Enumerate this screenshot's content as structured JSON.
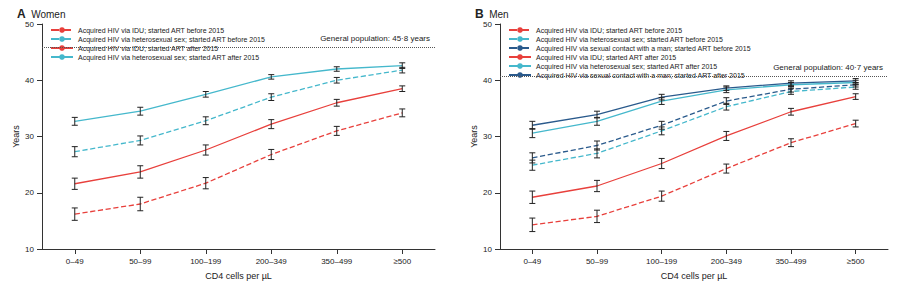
{
  "chart_data": [
    {
      "type": "line",
      "panel": "A",
      "title": "Women",
      "x_label": "CD4 cells per µL",
      "y_label": "Years",
      "categories": [
        "0–49",
        "50–99",
        "100–199",
        "200–349",
        "350–499",
        "≥500"
      ],
      "ylim": [
        10,
        50
      ],
      "yticks": [
        10,
        20,
        30,
        40,
        50
      ],
      "grid": false,
      "legend": "upper left",
      "reference_line": {
        "value": 45.8,
        "label": "General population: 45·8 years"
      },
      "series": [
        {
          "name": "Acquired HIV via IDU; started ART before 2015",
          "color": "#e8403c",
          "line_style": "dashed",
          "values": [
            16.2,
            18.0,
            21.7,
            26.8,
            31.0,
            34.2
          ],
          "errors": [
            1.1,
            1.2,
            1.0,
            0.9,
            0.8,
            0.7
          ]
        },
        {
          "name": "Acquired HIV via heterosexual sex; started ART before 2015",
          "color": "#45b8cc",
          "line_style": "dashed",
          "values": [
            27.3,
            29.3,
            32.8,
            37.0,
            40.0,
            41.8
          ],
          "errors": [
            0.9,
            0.8,
            0.7,
            0.6,
            0.5,
            0.5
          ]
        },
        {
          "name": "Acquired HIV via IDU; started ART after 2015",
          "color": "#e8403c",
          "line_style": "solid",
          "values": [
            21.6,
            23.7,
            27.6,
            32.2,
            36.0,
            38.5
          ],
          "errors": [
            1.0,
            1.1,
            0.9,
            0.8,
            0.6,
            0.5
          ]
        },
        {
          "name": "Acquired HIV via heterosexual sex; started ART after 2015",
          "color": "#45b8cc",
          "line_style": "solid",
          "values": [
            32.7,
            34.5,
            37.5,
            40.6,
            42.0,
            42.6
          ],
          "errors": [
            0.7,
            0.7,
            0.5,
            0.4,
            0.4,
            0.5
          ]
        }
      ]
    },
    {
      "type": "line",
      "panel": "B",
      "title": "Men",
      "x_label": "CD4 cells per µL",
      "y_label": "Years",
      "categories": [
        "0–49",
        "50–99",
        "100–199",
        "200–349",
        "350–499",
        "≥500"
      ],
      "ylim": [
        10,
        50
      ],
      "yticks": [
        10,
        20,
        30,
        40,
        50
      ],
      "grid": false,
      "legend": "upper left",
      "reference_line": {
        "value": 40.7,
        "label": "General population: 40·7 years"
      },
      "series": [
        {
          "name": "Acquired HIV via IDU; started ART before 2015",
          "color": "#e8403c",
          "line_style": "dashed",
          "values": [
            14.3,
            15.8,
            19.4,
            24.3,
            28.9,
            32.3
          ],
          "errors": [
            1.2,
            1.1,
            0.9,
            0.8,
            0.7,
            0.6
          ]
        },
        {
          "name": "Acquired HIV via heterosexual sex; started ART before 2015",
          "color": "#45b8cc",
          "line_style": "dashed",
          "values": [
            24.9,
            27.0,
            31.0,
            35.3,
            38.0,
            38.8
          ],
          "errors": [
            0.9,
            0.8,
            0.7,
            0.6,
            0.5,
            0.4
          ]
        },
        {
          "name": "Acquired HIV via sexual contact with a man; started ART before 2015",
          "color": "#2a5a8c",
          "line_style": "dashed",
          "values": [
            26.2,
            28.4,
            32.0,
            36.3,
            38.4,
            39.2
          ],
          "errors": [
            0.9,
            0.8,
            0.7,
            0.6,
            0.5,
            0.4
          ]
        },
        {
          "name": "Acquired HIV via IDU; started ART after 2015",
          "color": "#e8403c",
          "line_style": "solid",
          "values": [
            19.2,
            21.2,
            25.2,
            30.1,
            34.4,
            37.1
          ],
          "errors": [
            1.1,
            1.0,
            0.9,
            0.8,
            0.6,
            0.5
          ]
        },
        {
          "name": "Acquired HIV via heterosexual sex; started ART after 2015",
          "color": "#45b8cc",
          "line_style": "solid",
          "values": [
            30.6,
            32.7,
            36.3,
            38.3,
            39.2,
            39.6
          ],
          "errors": [
            0.8,
            0.7,
            0.6,
            0.5,
            0.4,
            0.4
          ]
        },
        {
          "name": "Acquired HIV via sexual contact with a man; started ART after 2015",
          "color": "#2a5a8c",
          "line_style": "solid",
          "values": [
            32.0,
            33.9,
            37.0,
            38.6,
            39.5,
            39.9
          ],
          "errors": [
            0.7,
            0.6,
            0.5,
            0.4,
            0.4,
            0.4
          ]
        }
      ]
    }
  ]
}
